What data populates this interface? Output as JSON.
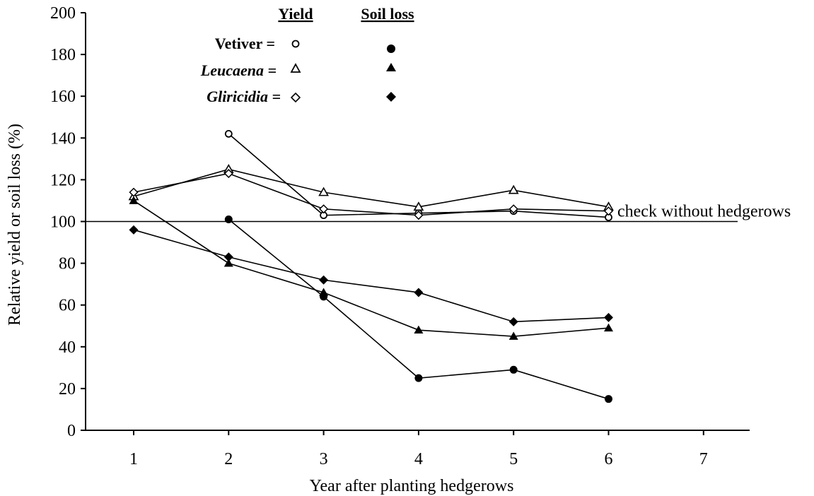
{
  "chart_data": {
    "type": "line",
    "title": "",
    "xlabel": "Year after planting hedgerows",
    "ylabel": "Relative yield or soil loss (%)",
    "xlim": [
      0.5,
      7.5
    ],
    "ylim": [
      0,
      200
    ],
    "x_ticks": [
      1,
      2,
      3,
      4,
      5,
      6,
      7
    ],
    "y_ticks": [
      0,
      20,
      40,
      60,
      80,
      100,
      120,
      140,
      160,
      180,
      200
    ],
    "grid": false,
    "reference_line": {
      "y": 100,
      "label": "check without hedgerows"
    },
    "legend": {
      "placement": "top-center",
      "columns": [
        "Yield",
        "Soil loss"
      ],
      "rows": [
        {
          "label": "Vetiver =",
          "style": "bold"
        },
        {
          "label": "Leucaena =",
          "style": "italic-bold"
        },
        {
          "label": "Gliricidia =",
          "style": "italic-bold"
        }
      ]
    },
    "series": [
      {
        "name": "Vetiver",
        "metric": "Yield",
        "marker": "circle",
        "filled": false,
        "x": [
          2,
          3,
          4,
          5,
          6
        ],
        "y": [
          142,
          103,
          104,
          105,
          102
        ]
      },
      {
        "name": "Leucaena",
        "metric": "Yield",
        "marker": "triangle",
        "filled": false,
        "x": [
          1,
          2,
          3,
          4,
          5,
          6
        ],
        "y": [
          112,
          125,
          114,
          107,
          115,
          107
        ]
      },
      {
        "name": "Gliricidia",
        "metric": "Yield",
        "marker": "diamond",
        "filled": false,
        "x": [
          1,
          2,
          3,
          4,
          5,
          6
        ],
        "y": [
          114,
          123,
          106,
          103,
          106,
          105
        ]
      },
      {
        "name": "Vetiver",
        "metric": "Soil loss",
        "marker": "circle",
        "filled": true,
        "x": [
          2,
          3,
          4,
          5,
          6
        ],
        "y": [
          101,
          64,
          25,
          29,
          15
        ]
      },
      {
        "name": "Leucaena",
        "metric": "Soil loss",
        "marker": "triangle",
        "filled": true,
        "x": [
          1,
          2,
          3,
          4,
          5,
          6
        ],
        "y": [
          110,
          80,
          66,
          48,
          45,
          49
        ]
      },
      {
        "name": "Gliricidia",
        "metric": "Soil loss",
        "marker": "diamond",
        "filled": true,
        "x": [
          1,
          2,
          3,
          4,
          5,
          6
        ],
        "y": [
          96,
          83,
          72,
          66,
          52,
          54
        ]
      }
    ]
  }
}
